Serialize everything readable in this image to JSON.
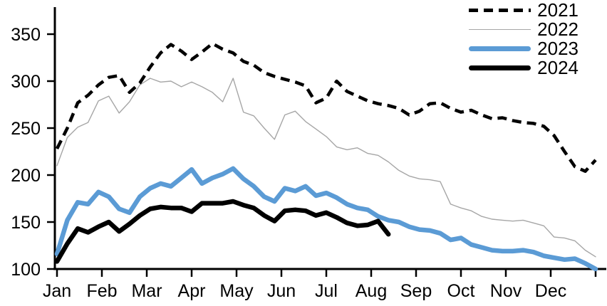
{
  "page": {
    "background": "#ffffff"
  },
  "chart_data": {
    "type": "line",
    "x_axis": {
      "tick_labels": [
        "Jan",
        "Feb",
        "Mar",
        "Apr",
        "May",
        "Jun",
        "Jul",
        "Aug",
        "Sep",
        "Oct",
        "Nov",
        "Dec"
      ],
      "resolution": "weekly",
      "weeks_per_year": 53
    },
    "y_axis": {
      "ticks": [
        100,
        150,
        200,
        250,
        300,
        350
      ],
      "min": 100,
      "max": 355,
      "grid": false
    },
    "legend": {
      "position": "top-right",
      "entries": [
        "2021",
        "2022",
        "2023",
        "2024"
      ]
    },
    "series": [
      {
        "name": "2021",
        "color": "#000000",
        "line_style": "dashed",
        "width": 4.5,
        "values": [
          228,
          250,
          277,
          285,
          296,
          304,
          306,
          288,
          298,
          315,
          330,
          339,
          332,
          323,
          331,
          340,
          334,
          330,
          321,
          317,
          309,
          305,
          302,
          299,
          295,
          277,
          282,
          300,
          289,
          284,
          279,
          276,
          274,
          271,
          264,
          268,
          276,
          277,
          271,
          267,
          269,
          264,
          260,
          261,
          258,
          256,
          255,
          252,
          242,
          225,
          209,
          204,
          216
        ]
      },
      {
        "name": "2022",
        "color": "#a6a6a6",
        "line_style": "solid",
        "width": 1.4,
        "values": [
          210,
          240,
          251,
          256,
          279,
          284,
          266,
          278,
          296,
          303,
          299,
          300,
          294,
          299,
          294,
          288,
          278,
          303,
          267,
          263,
          250,
          238,
          264,
          268,
          257,
          249,
          241,
          230,
          227,
          229,
          223,
          221,
          214,
          205,
          199,
          196,
          195,
          193,
          169,
          165,
          162,
          156,
          153,
          152,
          151,
          152,
          149,
          146,
          134,
          133,
          130,
          120,
          113
        ]
      },
      {
        "name": "2023",
        "color": "#5b9bd5",
        "line_style": "solid",
        "width": 6.5,
        "values": [
          116,
          152,
          171,
          169,
          182,
          177,
          164,
          160,
          177,
          186,
          191,
          188,
          197,
          206,
          191,
          197,
          201,
          207,
          196,
          188,
          177,
          172,
          186,
          183,
          188,
          178,
          181,
          176,
          169,
          165,
          163,
          156,
          152,
          150,
          145,
          142,
          141,
          138,
          131,
          133,
          126,
          123,
          120,
          119,
          119,
          120,
          118,
          114,
          112,
          110,
          111,
          106,
          100
        ]
      },
      {
        "name": "2024",
        "color": "#000000",
        "line_style": "solid",
        "width": 6.5,
        "values": [
          108,
          127,
          143,
          139,
          145,
          150,
          140,
          148,
          157,
          164,
          166,
          165,
          165,
          161,
          170,
          170,
          170,
          172,
          168,
          165,
          157,
          151,
          162,
          163,
          162,
          157,
          160,
          155,
          149,
          146,
          147,
          151,
          137
        ]
      }
    ]
  }
}
